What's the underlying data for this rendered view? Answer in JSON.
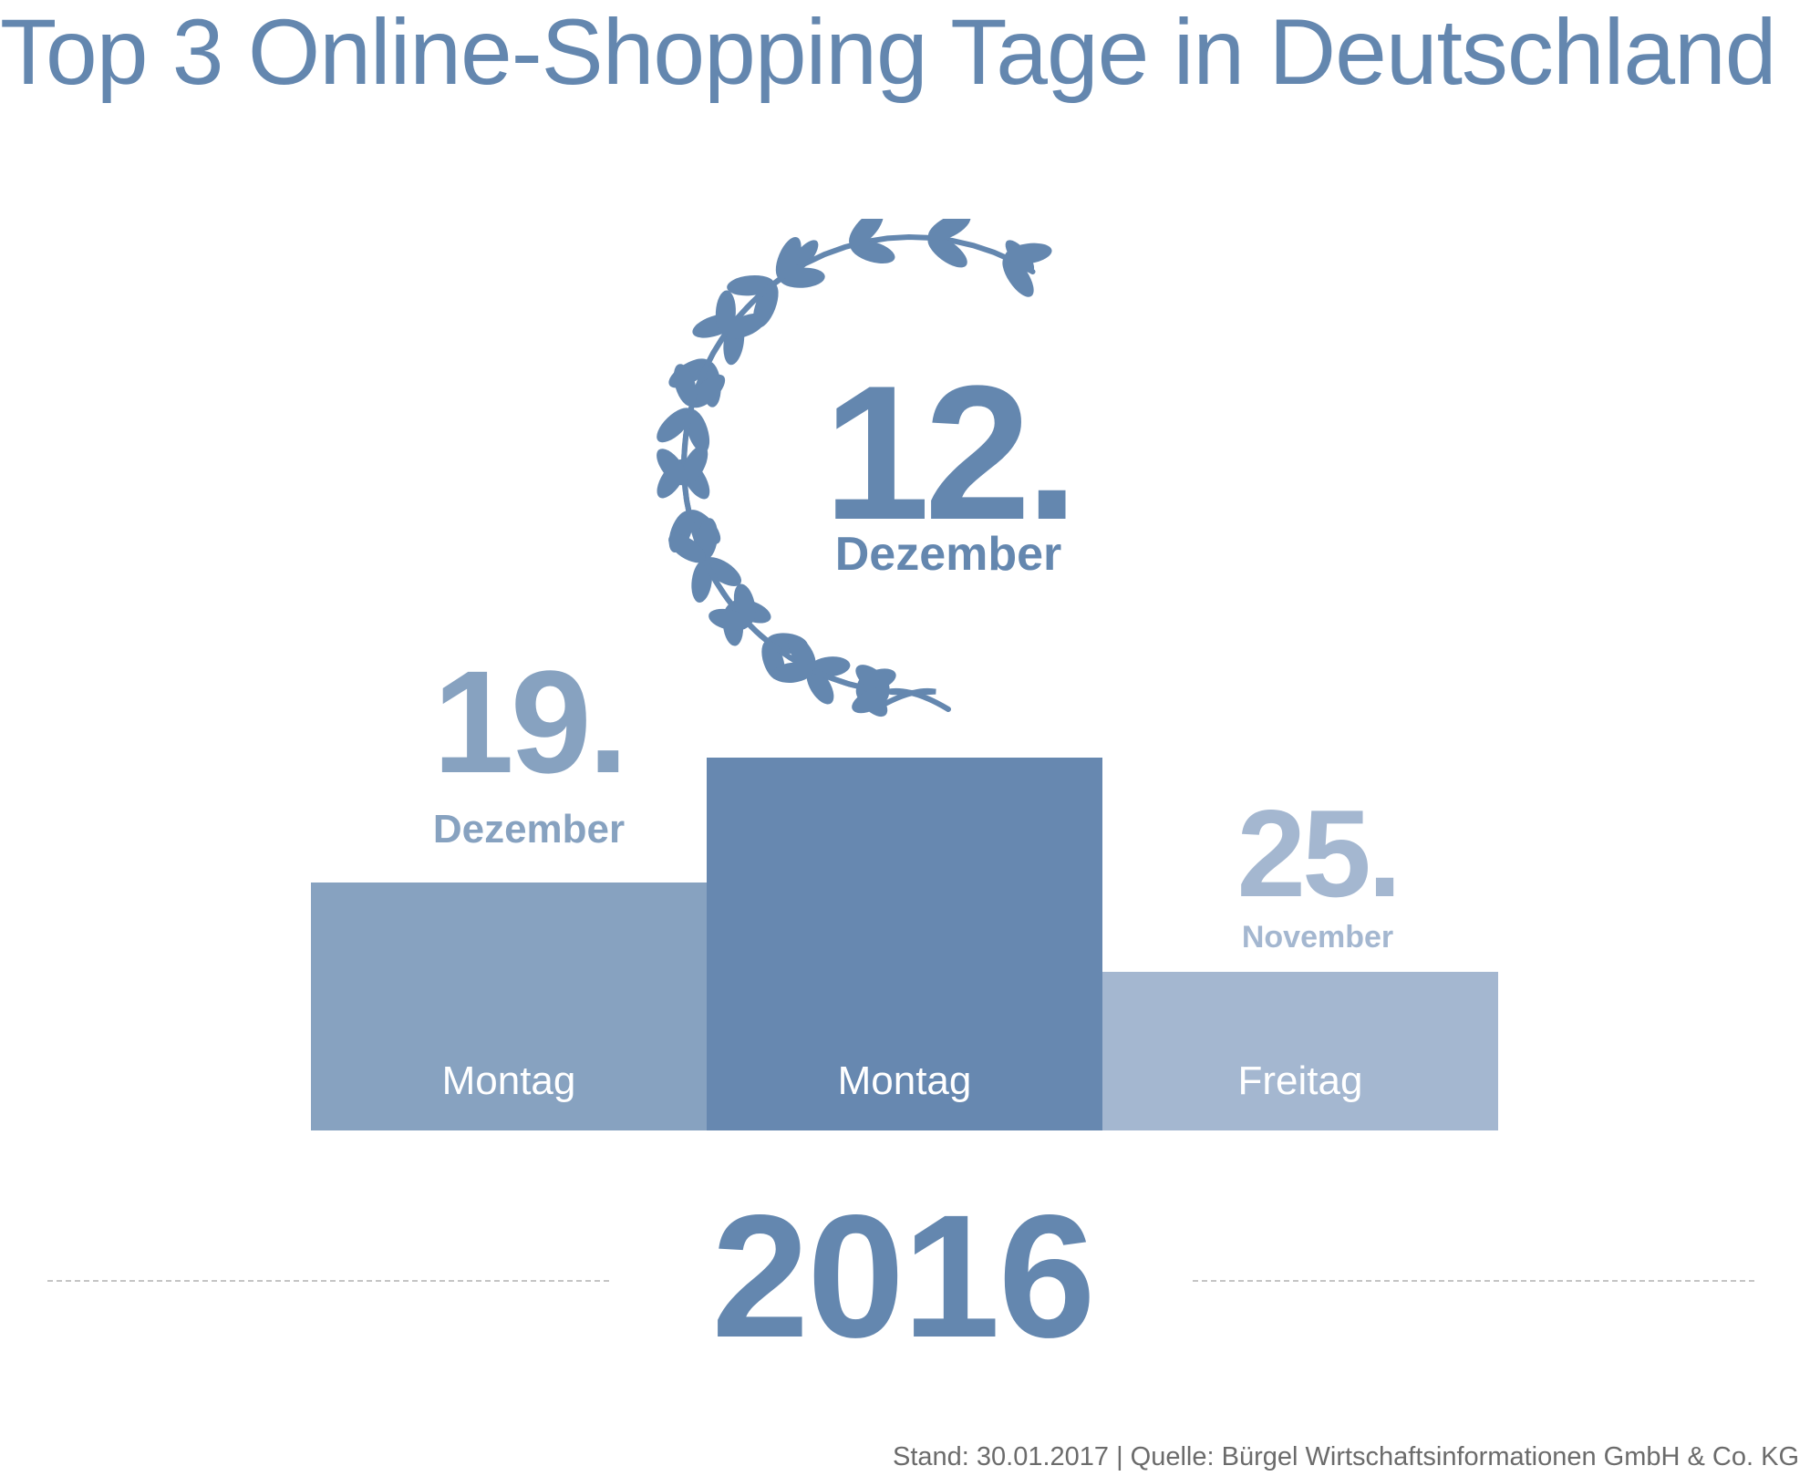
{
  "title": "Top 3 Online-Shopping Tage in Deutschland",
  "colors": {
    "title": "#6487af",
    "first": "#6788b0",
    "second": "#87a2c0",
    "third": "#a4b7d0",
    "footer": "#6b6b6b",
    "dashed_line": "#c4c4c4"
  },
  "laurel_wreath_icon": "laurel-wreath",
  "ranking": {
    "first": {
      "day": "12.",
      "month": "Dezember",
      "weekday": "Montag"
    },
    "second": {
      "day": "19.",
      "month": "Dezember",
      "weekday": "Montag"
    },
    "third": {
      "day": "25.",
      "month": "November",
      "weekday": "Freitag"
    }
  },
  "year": "2016",
  "footer": "Stand: 30.01.2017 | Quelle: Bürgel Wirtschaftsinformationen GmbH & Co. KG"
}
